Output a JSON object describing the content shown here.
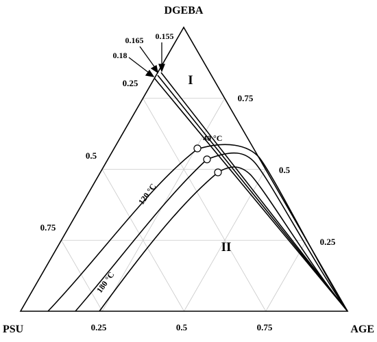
{
  "vertices": {
    "top": "DGEBA",
    "left": "PSU",
    "right": "AGE"
  },
  "ticks": {
    "bottom": [
      "0.25",
      "0.5",
      "0.75"
    ],
    "left": [
      "0.25",
      "0.5",
      "0.75"
    ],
    "right": [
      "0.75",
      "0.5",
      "0.25"
    ]
  },
  "regions": {
    "one": "I",
    "two": "II"
  },
  "tie_line_labels": [
    "0.165",
    "0.155",
    "0.18"
  ],
  "curve_labels": {
    "c40": "40 °C",
    "c120": "120 °C",
    "c180": "180 °C"
  },
  "colors": {
    "line": "#000000",
    "grid": "#c8c8c8",
    "background": "#ffffff"
  }
}
